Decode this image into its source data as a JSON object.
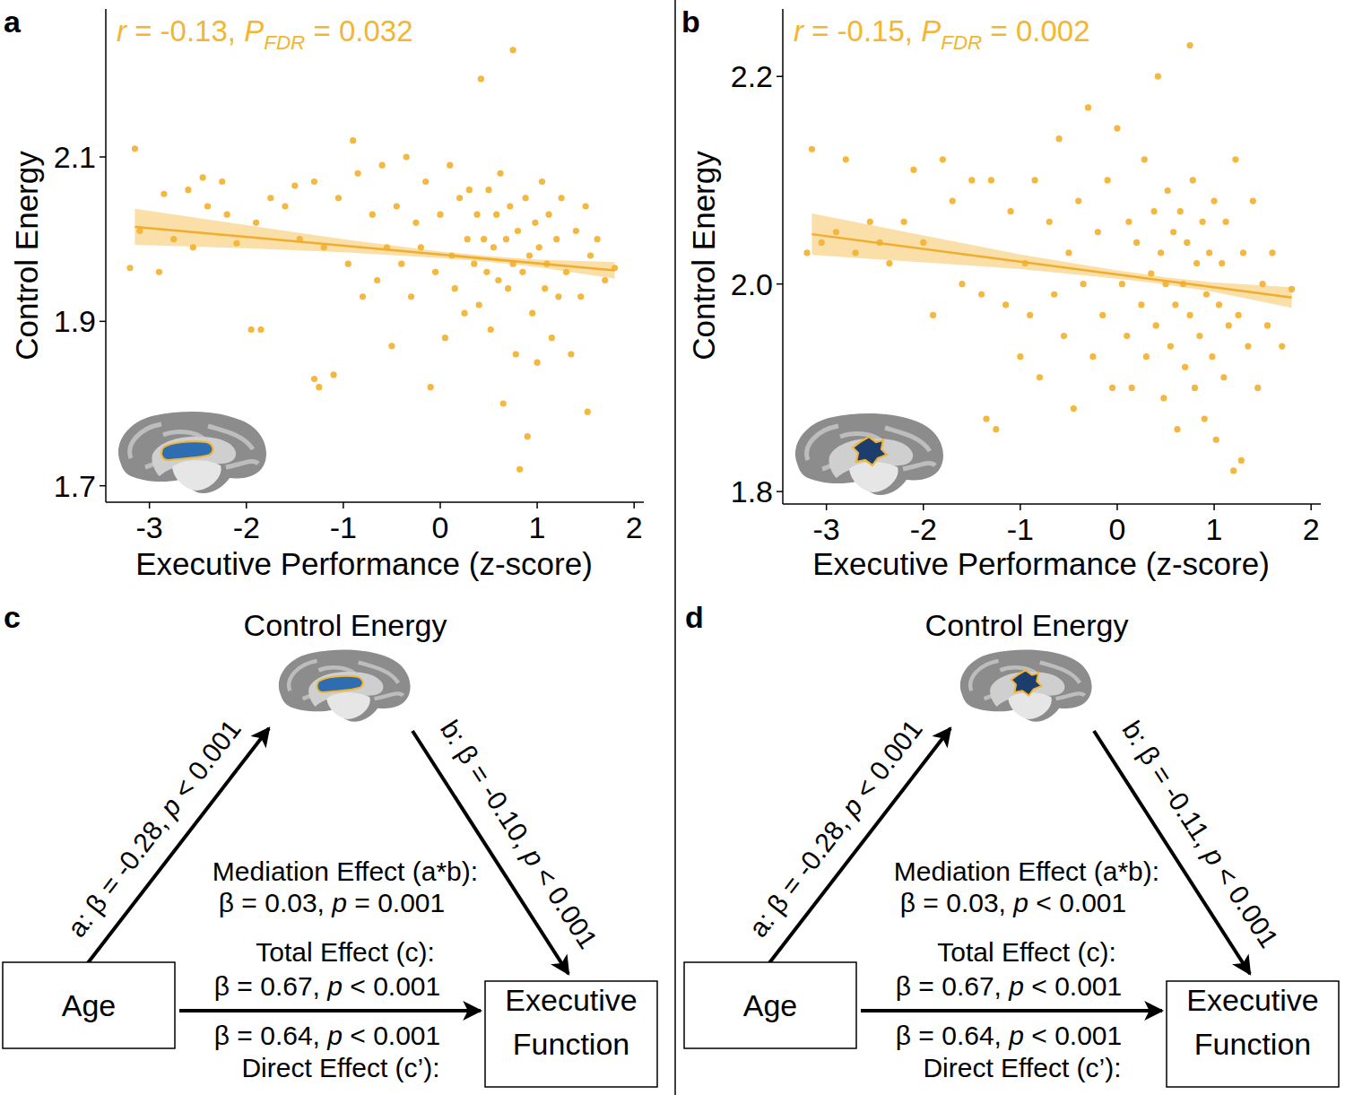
{
  "chart_data": [
    {
      "type": "scatter",
      "panel": "a",
      "annotation": [
        {
          "text": "r",
          "style": "italic"
        },
        {
          "text": " = -0.13, "
        },
        {
          "text": "P",
          "style": "italic"
        },
        {
          "text": "FDR",
          "style": "italic-sub"
        },
        {
          "text": " = 0.032"
        }
      ],
      "xlabel": "Executive Performance (z-score)",
      "ylabel": "Control Energy",
      "color": "#f4b73f",
      "xlim": [
        -3.45,
        2.1
      ],
      "ylim": [
        1.68,
        2.28
      ],
      "xticks": [
        -3,
        -2,
        -1,
        0,
        1,
        2
      ],
      "yticks": [
        1.7,
        1.9,
        2.1
      ],
      "x": [
        -3.2,
        -3.15,
        -3.1,
        -2.9,
        -2.85,
        -2.75,
        -2.6,
        -2.55,
        -2.45,
        -2.4,
        -2.25,
        -2.2,
        -2.1,
        -1.95,
        -1.9,
        -1.85,
        -1.75,
        -1.6,
        -1.5,
        -1.45,
        -1.3,
        -1.25,
        -1.3,
        -1.2,
        -1.1,
        -1.05,
        -0.95,
        -0.9,
        -0.85,
        -0.8,
        -0.7,
        -0.65,
        -0.6,
        -0.55,
        -0.5,
        -0.45,
        -0.4,
        -0.35,
        -0.3,
        -0.25,
        -0.2,
        -0.15,
        -0.1,
        -0.05,
        0.0,
        0.05,
        0.1,
        0.12,
        0.15,
        0.2,
        0.25,
        0.28,
        0.3,
        0.35,
        0.38,
        0.4,
        0.42,
        0.45,
        0.48,
        0.5,
        0.52,
        0.55,
        0.58,
        0.6,
        0.62,
        0.65,
        0.68,
        0.7,
        0.72,
        0.75,
        0.75,
        0.78,
        0.8,
        0.82,
        0.85,
        0.88,
        0.9,
        0.92,
        0.95,
        0.98,
        1.0,
        1.02,
        1.05,
        1.08,
        1.1,
        1.12,
        1.15,
        1.2,
        1.22,
        1.25,
        1.3,
        1.35,
        1.4,
        1.45,
        1.5,
        1.52,
        1.55,
        1.62,
        1.7,
        1.8
      ],
      "values": [
        1.965,
        2.11,
        2.01,
        1.96,
        2.055,
        2.0,
        2.06,
        1.99,
        2.075,
        2.04,
        2.07,
        2.03,
        1.995,
        1.89,
        2.02,
        1.89,
        2.05,
        2.04,
        2.065,
        2.0,
        1.83,
        1.82,
        2.07,
        1.99,
        1.835,
        2.05,
        1.97,
        2.12,
        2.08,
        1.93,
        2.03,
        1.95,
        2.09,
        1.99,
        1.87,
        2.04,
        1.97,
        2.1,
        1.93,
        2.02,
        1.99,
        2.07,
        1.82,
        1.96,
        2.03,
        1.88,
        2.09,
        1.98,
        1.94,
        2.05,
        1.91,
        2.0,
        2.06,
        1.97,
        2.03,
        1.92,
        2.195,
        2.0,
        1.96,
        2.06,
        1.89,
        1.99,
        2.03,
        1.95,
        2.08,
        1.8,
        2.0,
        1.94,
        2.04,
        2.23,
        1.97,
        1.86,
        2.01,
        1.72,
        1.96,
        2.05,
        1.76,
        1.98,
        1.91,
        2.02,
        1.85,
        1.99,
        2.07,
        1.94,
        1.97,
        2.03,
        1.88,
        2.0,
        1.93,
        2.05,
        1.96,
        1.86,
        2.01,
        1.93,
        2.04,
        1.79,
        1.98,
        2.0,
        1.95,
        1.965
      ],
      "fit": {
        "x": [
          -3.15,
          1.8
        ],
        "y": [
          2.015,
          1.962
        ]
      },
      "ci": {
        "x": [
          -3.15,
          -2,
          -1,
          0,
          0.5,
          1,
          1.8
        ],
        "lower": [
          1.993,
          1.989,
          1.984,
          1.977,
          1.9725,
          1.966,
          1.952
        ],
        "upper": [
          2.037,
          2.017,
          2.0,
          1.985,
          1.9795,
          1.975,
          1.972
        ]
      }
    },
    {
      "type": "scatter",
      "panel": "b",
      "annotation": [
        {
          "text": "r",
          "style": "italic"
        },
        {
          "text": " = -0.15, "
        },
        {
          "text": "P",
          "style": "italic"
        },
        {
          "text": "FDR",
          "style": "italic-sub"
        },
        {
          "text": " = 0.002"
        }
      ],
      "xlabel": "Executive Performance (z-score)",
      "ylabel": "Control Energy",
      "color": "#f4b73f",
      "xlim": [
        -3.45,
        2.1
      ],
      "ylim": [
        1.788,
        2.265
      ],
      "xticks": [
        -3,
        -2,
        -1,
        0,
        1,
        2
      ],
      "yticks": [
        1.8,
        {
          "value": 2,
          "label": "2.0"
        },
        2.2
      ],
      "x": [
        -3.2,
        -3.15,
        -3.05,
        -2.9,
        -2.8,
        -2.7,
        -2.55,
        -2.45,
        -2.35,
        -2.2,
        -2.1,
        -2.0,
        -1.9,
        -1.8,
        -1.7,
        -1.6,
        -1.5,
        -1.4,
        -1.35,
        -1.3,
        -1.25,
        -1.15,
        -1.1,
        -1.0,
        -0.95,
        -0.9,
        -0.85,
        -0.8,
        -0.7,
        -0.65,
        -0.6,
        -0.55,
        -0.5,
        -0.45,
        -0.4,
        -0.35,
        -0.3,
        -0.25,
        -0.2,
        -0.15,
        -0.1,
        -0.05,
        0.0,
        0.05,
        0.1,
        0.12,
        0.15,
        0.2,
        0.25,
        0.28,
        0.3,
        0.35,
        0.38,
        0.4,
        0.42,
        0.45,
        0.48,
        0.5,
        0.52,
        0.55,
        0.58,
        0.6,
        0.62,
        0.65,
        0.68,
        0.7,
        0.72,
        0.75,
        0.75,
        0.78,
        0.8,
        0.82,
        0.85,
        0.88,
        0.9,
        0.92,
        0.95,
        0.98,
        1.0,
        1.02,
        1.05,
        1.08,
        1.1,
        1.12,
        1.15,
        1.2,
        1.22,
        1.25,
        1.28,
        1.3,
        1.35,
        1.4,
        1.45,
        1.5,
        1.55,
        1.6,
        1.7,
        1.8
      ],
      "values": [
        2.03,
        2.13,
        2.04,
        2.05,
        2.12,
        2.03,
        2.06,
        2.04,
        2.02,
        2.06,
        2.11,
        2.04,
        1.97,
        2.12,
        2.08,
        2.0,
        2.1,
        1.99,
        1.87,
        2.1,
        1.86,
        1.98,
        2.07,
        1.93,
        2.02,
        1.97,
        2.1,
        1.91,
        2.06,
        1.99,
        2.14,
        1.95,
        2.03,
        1.88,
        2.08,
        2.0,
        2.17,
        1.93,
        2.05,
        1.97,
        2.1,
        1.9,
        2.15,
        2.0,
        1.95,
        2.06,
        1.9,
        2.04,
        1.98,
        2.12,
        1.93,
        2.01,
        2.07,
        1.96,
        2.2,
        2.03,
        1.89,
        2.0,
        2.09,
        1.94,
        2.05,
        1.98,
        1.86,
        2.07,
        2.0,
        1.92,
        2.04,
        2.23,
        1.97,
        2.1,
        1.9,
        2.02,
        1.95,
        2.06,
        1.87,
        1.99,
        2.03,
        1.93,
        2.08,
        1.85,
        1.98,
        2.02,
        1.91,
        2.06,
        1.96,
        1.82,
        2.12,
        1.97,
        1.83,
        2.03,
        1.94,
        2.08,
        1.9,
        2.0,
        1.96,
        2.03,
        1.94,
        1.995
      ],
      "fit": {
        "x": [
          -3.15,
          1.8
        ],
        "y": [
          2.048,
          1.987
        ]
      },
      "ci": {
        "x": [
          -3.15,
          -2,
          -1,
          0,
          0.5,
          1,
          1.8
        ],
        "lower": [
          2.028,
          2.0208,
          2.0145,
          2.0052,
          1.9995,
          1.9924,
          1.977
        ],
        "upper": [
          2.068,
          2.0468,
          2.0285,
          2.0132,
          2.0065,
          2.0014,
          1.997
        ]
      }
    }
  ],
  "mediation": [
    {
      "panel": "c",
      "title": "Control Energy",
      "a_path": [
        {
          "text": "a: β = -0.28, "
        },
        {
          "text": "p",
          "style": "italic"
        },
        {
          "text": " < 0.001"
        }
      ],
      "b_path": [
        {
          "text": "b: β = -0.10, "
        },
        {
          "text": "p",
          "style": "italic"
        },
        {
          "text": " < 0.001"
        }
      ],
      "mediation_label": "Mediation Effect (a*b):",
      "mediation_value": [
        {
          "text": "β = 0.03, "
        },
        {
          "text": "p",
          "style": "italic"
        },
        {
          "text": " = 0.001"
        }
      ],
      "total_label": "Total Effect (c):",
      "total_value": [
        {
          "text": "β = 0.67, "
        },
        {
          "text": "p",
          "style": "italic"
        },
        {
          "text": " < 0.001"
        }
      ],
      "direct_value": [
        {
          "text": "β = 0.64, "
        },
        {
          "text": "p",
          "style": "italic"
        },
        {
          "text": " < 0.001"
        }
      ],
      "direct_label": "Direct Effect (c’):",
      "predictor": "Age",
      "outcome": [
        "Executive",
        "Function"
      ]
    },
    {
      "panel": "d",
      "title": "Control Energy",
      "a_path": [
        {
          "text": "a: β = -0.28, "
        },
        {
          "text": "p",
          "style": "italic"
        },
        {
          "text": " < 0.001"
        }
      ],
      "b_path": [
        {
          "text": "b: β = -0.11, "
        },
        {
          "text": "p",
          "style": "italic"
        },
        {
          "text": " < 0.001"
        }
      ],
      "mediation_label": "Mediation Effect (a*b):",
      "mediation_value": [
        {
          "text": "β = 0.03, "
        },
        {
          "text": "p",
          "style": "italic"
        },
        {
          "text": " < 0.001"
        }
      ],
      "total_label": "Total Effect (c):",
      "total_value": [
        {
          "text": "β = 0.67, "
        },
        {
          "text": "p",
          "style": "italic"
        },
        {
          "text": " < 0.001"
        }
      ],
      "direct_value": [
        {
          "text": "β = 0.64, "
        },
        {
          "text": "p",
          "style": "italic"
        },
        {
          "text": " < 0.001"
        }
      ],
      "direct_label": "Direct Effect (c’):",
      "predictor": "Age",
      "outcome": [
        "Executive",
        "Function"
      ]
    }
  ]
}
